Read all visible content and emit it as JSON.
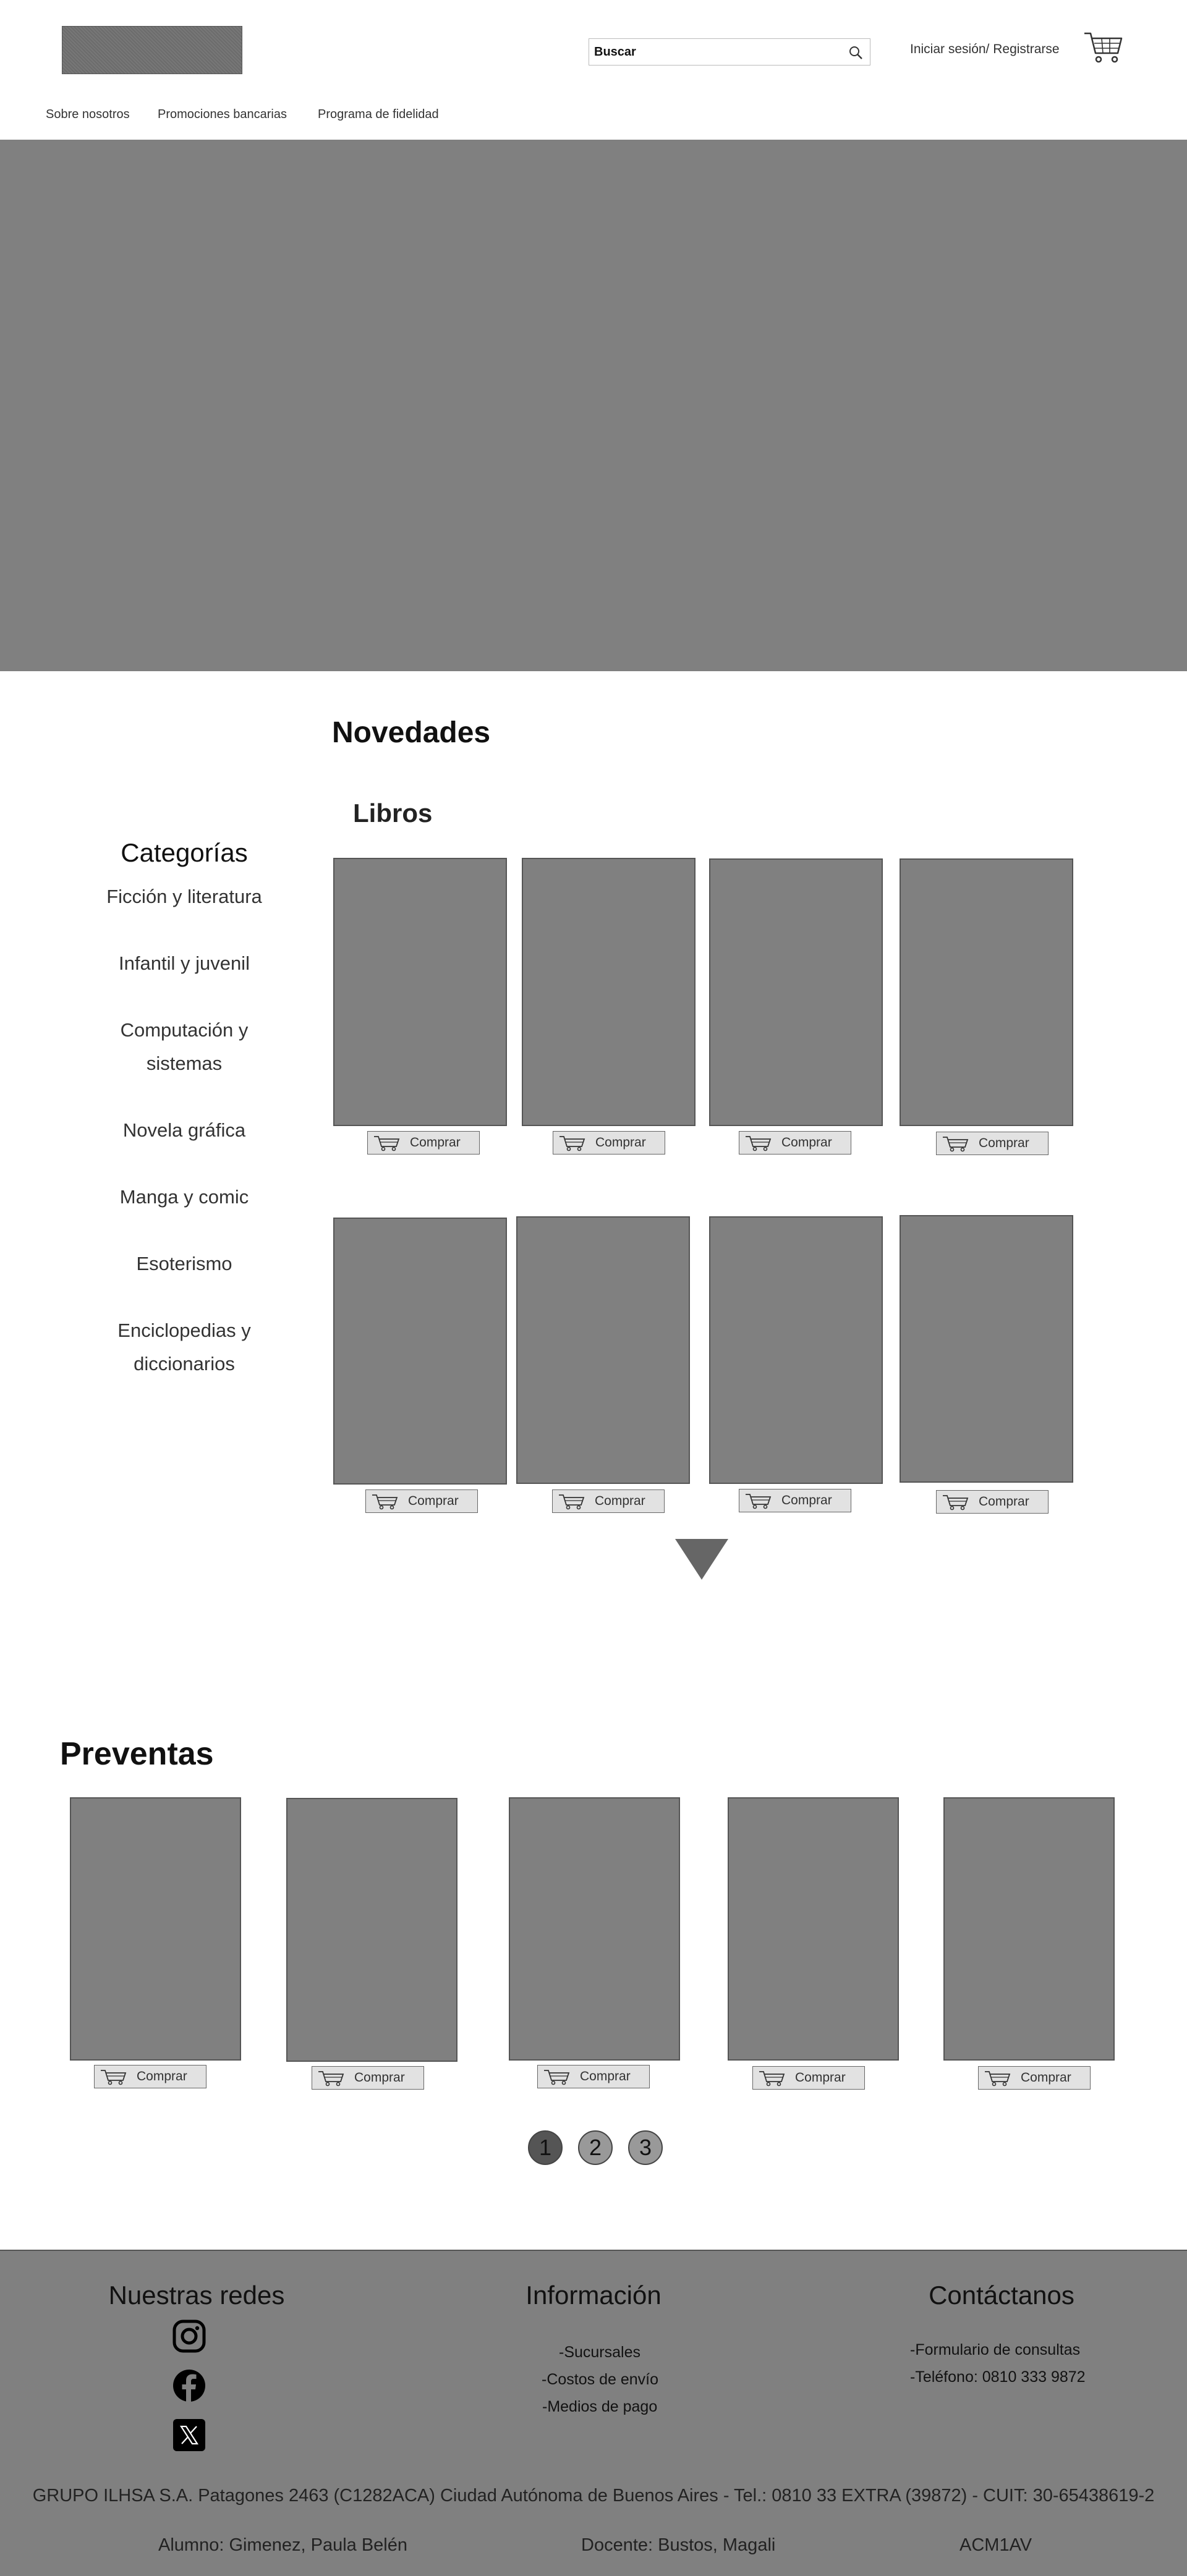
{
  "header": {
    "search_placeholder": "Buscar",
    "login_label": "Iniciar sesión/ Registrarse",
    "nav": [
      "Sobre nosotros",
      "Promociones bancarias",
      "Programa de fidelidad"
    ]
  },
  "novedades": {
    "title": "Novedades",
    "subtitle": "Libros"
  },
  "categories": {
    "title": "Categorías",
    "items": [
      "Ficción y literatura",
      "Infantil y juvenil",
      "Computación y sistemas",
      "Novela gráfica",
      "Manga y comic",
      "Esoterismo",
      "Enciclopedias y diccionarios"
    ]
  },
  "buy_label": "Comprar",
  "preventas": {
    "title": "Preventas",
    "pages": [
      "1",
      "2",
      "3"
    ]
  },
  "footer": {
    "social_title": "Nuestras redes",
    "info_title": "Información",
    "info_links": [
      "-Sucursales",
      "-Costos de envío",
      "-Medios de pago"
    ],
    "contact_title": "Contáctanos",
    "contact_links": [
      "-Formulario de consultas",
      "-Teléfono: 0810 333 9872"
    ],
    "legal": "GRUPO ILHSA S.A. Patagones 2463 (C1282ACA) Ciudad Autónoma de Buenos Aires - Tel.: 0810 33 EXTRA (39872) - CUIT: 30-65438619-2",
    "student": "Alumno: Gimenez, Paula Belén",
    "teacher": "Docente: Bustos, Magali",
    "course": "ACM1AV"
  },
  "colors": {
    "placeholder_gray": "#808080",
    "active_page": "#555555",
    "inactive_page": "#999999"
  },
  "icons": {
    "cart": "cart-icon",
    "search": "search-icon",
    "instagram": "instagram-icon",
    "facebook": "facebook-icon",
    "x": "x-icon"
  }
}
